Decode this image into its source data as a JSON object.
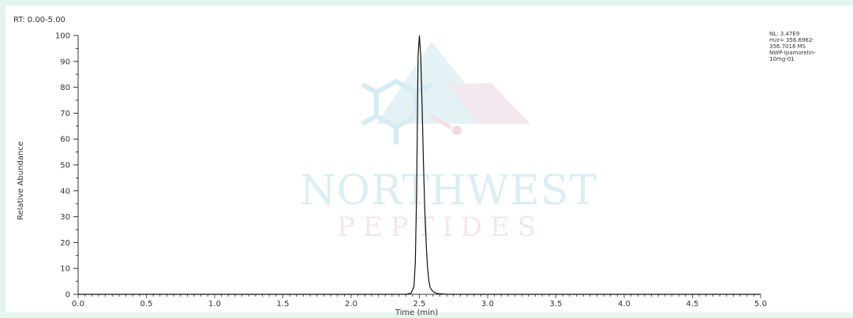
{
  "header": {
    "rt_range": "RT: 0.00-5.00"
  },
  "info_box": {
    "lines": [
      "NL: 3.47E9",
      "m/z= 356.6962-",
      "356.7016 MS",
      "NWP-Ipamorelin-",
      "10mg-01"
    ]
  },
  "watermark": {
    "line1": "NORTHWEST",
    "line2": "PEPTIDES"
  },
  "colors": {
    "trace": "#111111",
    "axis": "#333333",
    "background_border": "#e2f4ec"
  },
  "chart_data": {
    "type": "line",
    "xlabel": "Time (min)",
    "ylabel": "Relative Abundance",
    "xlim": [
      0,
      5
    ],
    "ylim": [
      0,
      100
    ],
    "x_ticks": [
      "0.0",
      "0.5",
      "1.0",
      "1.5",
      "2.0",
      "2.5",
      "3.0",
      "3.5",
      "4.0",
      "4.5",
      "5.0"
    ],
    "y_ticks": [
      "0",
      "10",
      "20",
      "30",
      "40",
      "50",
      "60",
      "70",
      "80",
      "90",
      "100"
    ],
    "grid": false,
    "legend": "none",
    "series": [
      {
        "x": [
          0.0,
          2.4,
          2.44,
          2.46,
          2.47,
          2.48,
          2.49,
          2.5,
          2.51,
          2.52,
          2.53,
          2.54,
          2.55,
          2.56,
          2.57,
          2.58,
          2.6,
          2.63,
          2.7,
          5.0
        ],
        "y": [
          0,
          0,
          0.5,
          3,
          12,
          40,
          92,
          100,
          92,
          72,
          50,
          32,
          19,
          10,
          5,
          2.5,
          1,
          0.3,
          0,
          0
        ]
      }
    ]
  }
}
